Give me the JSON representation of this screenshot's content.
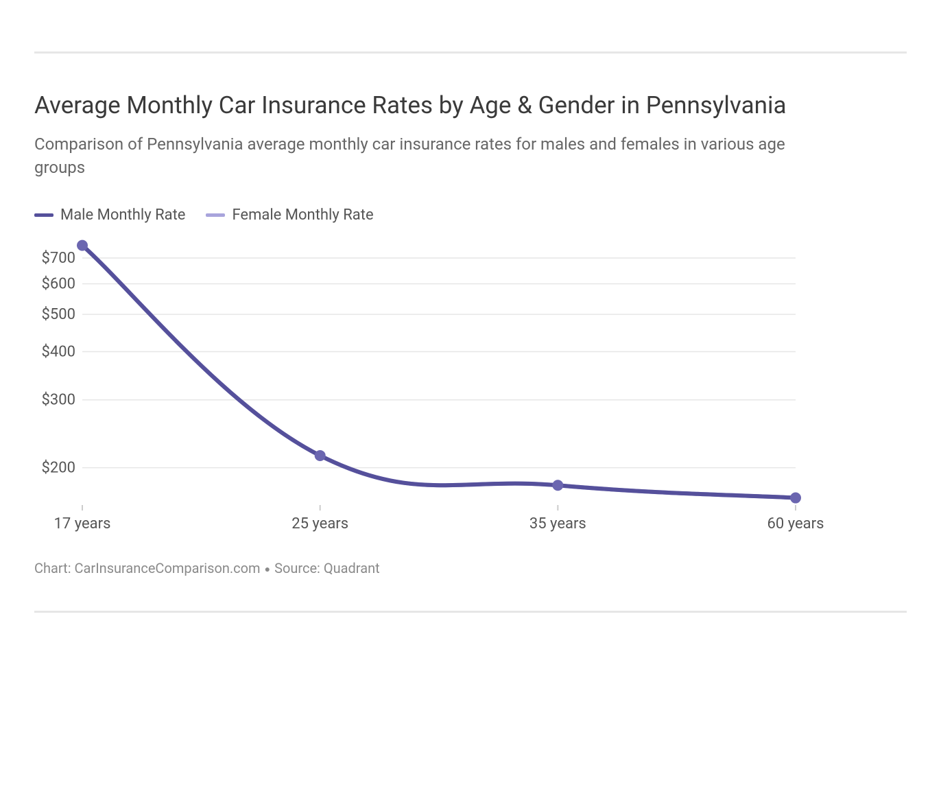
{
  "title": "Average Monthly Car Insurance Rates by Age & Gender in Pennsylvania",
  "subtitle": "Comparison of Pennsylvania average monthly car insurance rates for males and females in various age groups",
  "legend": {
    "male": {
      "label": "Male Monthly Rate",
      "color": "#55509b"
    },
    "female": {
      "label": "Female Monthly Rate",
      "color": "#a8a4dc"
    }
  },
  "chart": {
    "type": "line",
    "background_color": "#ffffff",
    "grid_color": "#e6e6e6",
    "tick_color": "#cccccc",
    "axis_label_color": "#555555",
    "axis_fontsize": 22,
    "line_width": 6,
    "marker_radius": 8,
    "marker_color": "#6b66b0",
    "y_scale": "log",
    "ylim": [
      160,
      760
    ],
    "y_ticks": [
      200,
      300,
      400,
      500,
      600,
      700
    ],
    "y_tick_labels": [
      "$200",
      "$300",
      "$400",
      "$500",
      "$600",
      "$700"
    ],
    "x_categories": [
      "17 years",
      "25 years",
      "35 years",
      "60 years"
    ],
    "series": {
      "male": {
        "color": "#55509b",
        "values": [
          755,
          215,
          180,
          167
        ]
      },
      "female": {
        "color": "#a8a4dc",
        "values": [
          755,
          215,
          180,
          167
        ]
      }
    }
  },
  "credits": {
    "chart_by_label": "Chart: ",
    "chart_by": "CarInsuranceComparison.com",
    "source_label": "Source: ",
    "source": "Quadrant"
  }
}
